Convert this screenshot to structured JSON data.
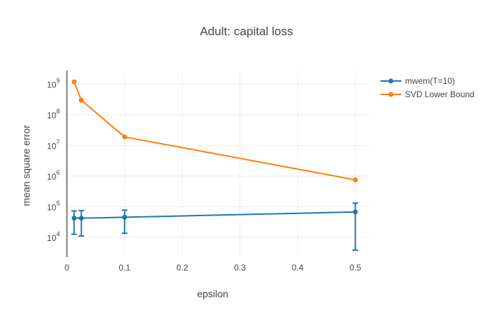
{
  "chart_data": {
    "type": "line",
    "title": "Adult: capital loss",
    "xlabel": "epsilon",
    "ylabel": "mean square error",
    "x_ticks": [
      "0",
      "0.1",
      "0.2",
      "0.3",
      "0.4",
      "0.5"
    ],
    "y_scale": "log",
    "y_ticks": [
      {
        "base": "10",
        "exp": "4"
      },
      {
        "base": "10",
        "exp": "5"
      },
      {
        "base": "10",
        "exp": "6"
      },
      {
        "base": "10",
        "exp": "7"
      },
      {
        "base": "10",
        "exp": "8"
      },
      {
        "base": "10",
        "exp": "9"
      }
    ],
    "xlim": [
      0,
      0.525
    ],
    "ylim_log10": [
      3.35,
      9.45
    ],
    "grid": true,
    "legend_position": "top-right",
    "series": [
      {
        "name": "mwem(T=10)",
        "color": "#1f77b4",
        "x": [
          0.0125,
          0.025,
          0.1,
          0.5
        ],
        "y": [
          42000,
          42000,
          45000,
          67000
        ],
        "err_low": [
          12500,
          11000,
          13500,
          3800
        ],
        "err_high": [
          72000,
          74000,
          77000,
          130000
        ]
      },
      {
        "name": "SVD Lower Bound",
        "color": "#ff7f0e",
        "x": [
          0.0125,
          0.025,
          0.1,
          0.5
        ],
        "y": [
          1200000000,
          300000000,
          19000000,
          750000
        ]
      }
    ]
  }
}
